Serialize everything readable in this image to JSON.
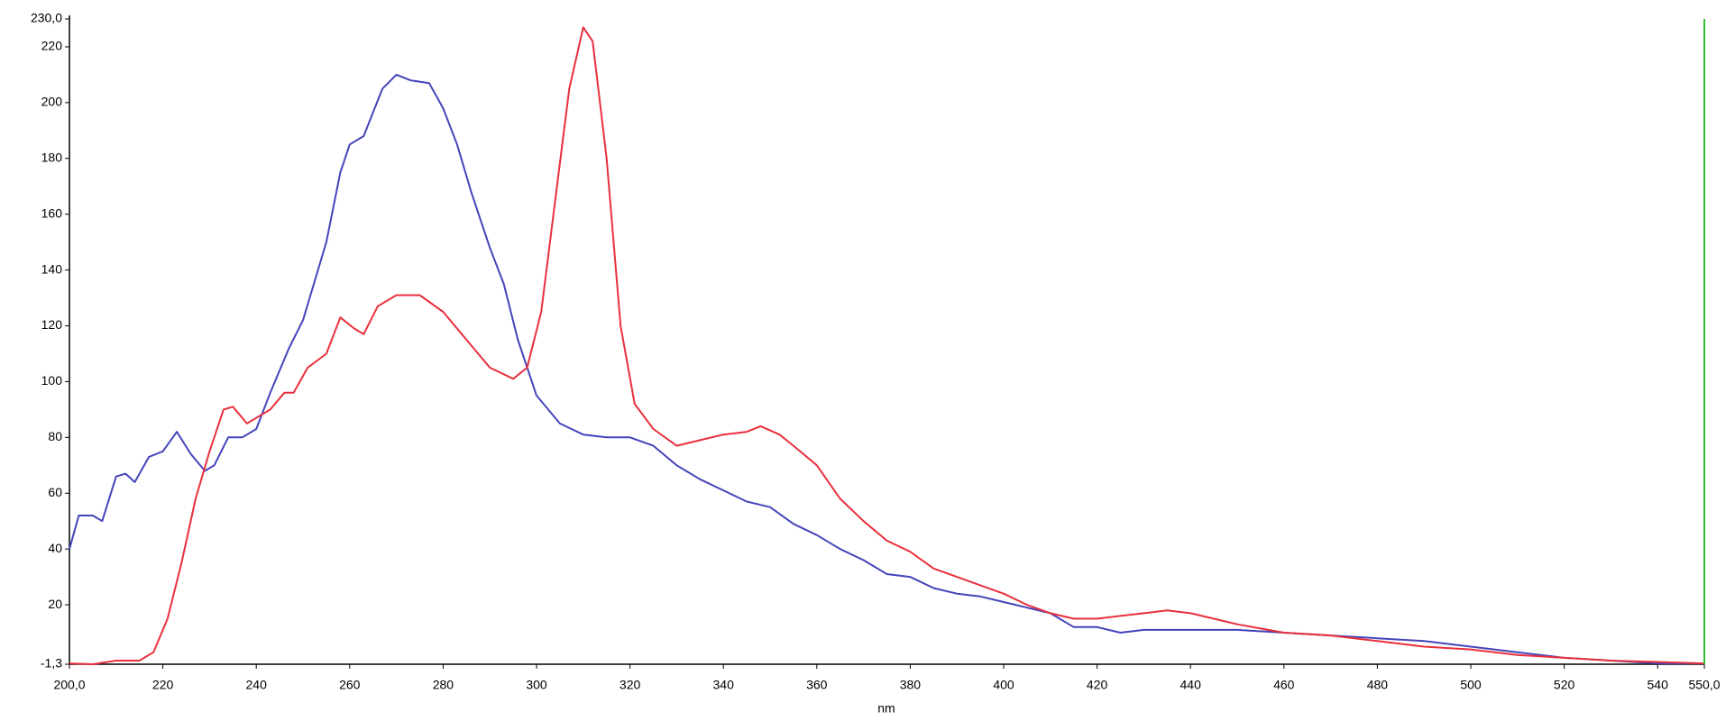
{
  "chart_data": {
    "type": "line",
    "x_label": "nm",
    "xlim": [
      200,
      550
    ],
    "ylim": [
      -1.3,
      230
    ],
    "xticks": [
      {
        "value": 200,
        "label": "200,0"
      },
      220,
      240,
      260,
      280,
      300,
      320,
      340,
      360,
      380,
      400,
      420,
      440,
      460,
      480,
      500,
      520,
      540,
      {
        "value": 550,
        "label": "550,0"
      }
    ],
    "yticks": [
      {
        "value": -1.3,
        "label": "-1,3"
      },
      20,
      40,
      60,
      80,
      100,
      120,
      140,
      160,
      180,
      200,
      220,
      {
        "value": 230,
        "label": "230,0"
      }
    ],
    "grid": false,
    "cursor_x": 550,
    "cursor_color": "#33c033",
    "series": [
      {
        "color": "#4444bb",
        "x": [
          200,
          202,
          205,
          207,
          210,
          212,
          214,
          217,
          220,
          223,
          226,
          229,
          231,
          234,
          237,
          240,
          243,
          247,
          250,
          255,
          258,
          260,
          263,
          267,
          270,
          273,
          277,
          280,
          283,
          286,
          290,
          293,
          296,
          300,
          305,
          310,
          315,
          320,
          325,
          330,
          335,
          340,
          345,
          350,
          355,
          360,
          365,
          370,
          375,
          380,
          385,
          390,
          395,
          400,
          405,
          410,
          415,
          420,
          425,
          430,
          440,
          450,
          460,
          470,
          480,
          490,
          500,
          510,
          520,
          530,
          540,
          550
        ],
        "values": [
          40,
          52,
          52,
          50,
          66,
          67,
          64,
          73,
          75,
          82,
          74,
          68,
          70,
          80,
          80,
          83,
          96,
          112,
          122,
          150,
          175,
          185,
          188,
          205,
          210,
          208,
          207,
          198,
          185,
          168,
          148,
          135,
          115,
          95,
          85,
          81,
          80,
          80,
          77,
          70,
          65,
          61,
          57,
          55,
          49,
          45,
          40,
          36,
          31,
          30,
          26,
          24,
          23,
          21,
          19,
          17,
          12,
          12,
          10,
          11,
          11,
          11,
          10,
          9,
          8,
          7,
          5,
          3,
          1,
          0,
          -1,
          -1
        ]
      },
      {
        "color": "#e8303c",
        "x": [
          200,
          205,
          210,
          215,
          218,
          221,
          224,
          227,
          230,
          233,
          235,
          238,
          240,
          243,
          246,
          248,
          251,
          255,
          258,
          261,
          263,
          266,
          270,
          275,
          280,
          285,
          290,
          295,
          298,
          301,
          304,
          307,
          310,
          312,
          315,
          318,
          321,
          325,
          330,
          335,
          340,
          345,
          348,
          352,
          355,
          360,
          365,
          370,
          375,
          380,
          385,
          390,
          395,
          400,
          405,
          410,
          415,
          420,
          425,
          430,
          435,
          440,
          445,
          450,
          460,
          470,
          480,
          490,
          500,
          510,
          520,
          530,
          540,
          550
        ],
        "values": [
          -1,
          -1.3,
          0,
          0,
          3,
          15,
          35,
          58,
          75,
          90,
          91,
          85,
          87,
          90,
          96,
          96,
          105,
          110,
          123,
          119,
          117,
          127,
          131,
          131,
          125,
          115,
          105,
          101,
          105,
          125,
          165,
          205,
          227,
          222,
          180,
          120,
          92,
          83,
          77,
          79,
          81,
          82,
          84,
          81,
          77,
          70,
          58,
          50,
          43,
          39,
          33,
          30,
          27,
          24,
          20,
          17,
          15,
          15,
          16,
          17,
          18,
          17,
          15,
          13,
          10,
          9,
          7,
          5,
          4,
          2,
          1,
          0,
          -0.5,
          -1
        ]
      }
    ]
  }
}
